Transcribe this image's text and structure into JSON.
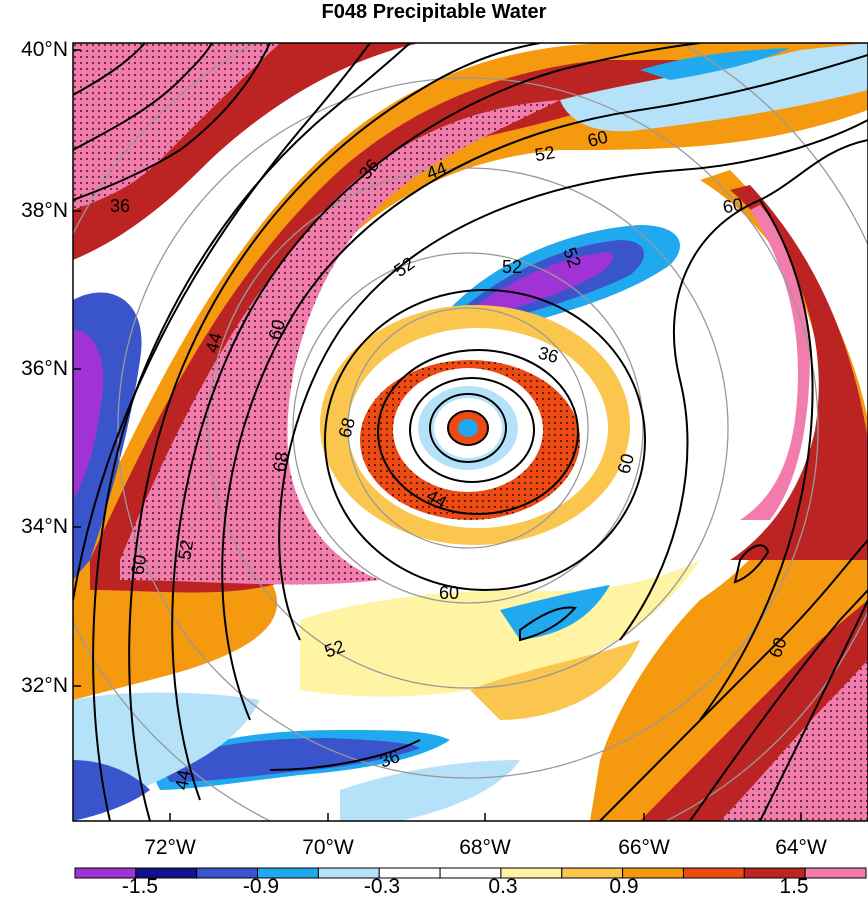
{
  "title": "F048 Precipitable Water",
  "map": {
    "lat_ticks": [
      "40°N",
      "38°N",
      "36°N",
      "34°N",
      "32°N"
    ],
    "lon_ticks": [
      "72°W",
      "70°W",
      "68°W",
      "66°W",
      "64°W"
    ],
    "contour_labels": [
      "36",
      "44",
      "52",
      "60",
      "68",
      "36",
      "44",
      "52",
      "60",
      "68",
      "36",
      "44",
      "52",
      "60",
      "60",
      "52",
      "52",
      "60",
      "60",
      "52",
      "36",
      "44",
      "60"
    ]
  },
  "colorbar": {
    "labels": [
      "-1.5",
      "-0.9",
      "-0.3",
      "0.3",
      "0.9",
      "1.5"
    ],
    "colors": [
      "#a033d6",
      "#12128e",
      "#3a55cc",
      "#21a9f0",
      "#b5e2f8",
      "#ffffff",
      "#ffffff",
      "#fff3a4",
      "#fac64d",
      "#f59a0f",
      "#ee4a13",
      "#bc2424",
      "#f27dac"
    ]
  }
}
